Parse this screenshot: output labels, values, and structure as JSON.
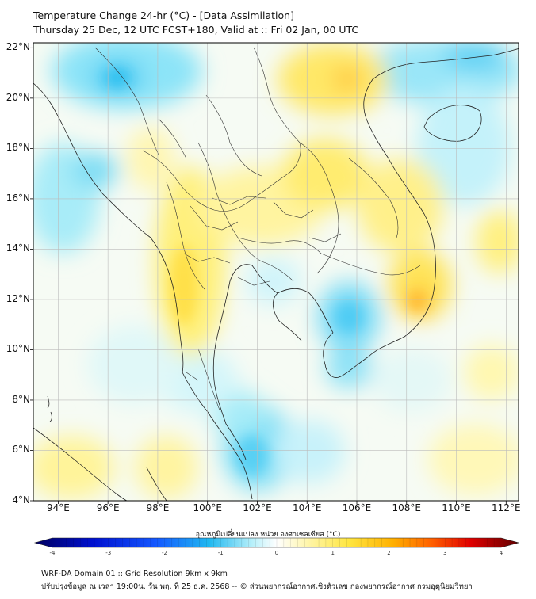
{
  "title_line1": "Temperature Change 24-hr (°C) - [Data Assimilation]",
  "title_line2": "Thursday 25 Dec, 12 UTC FCST+180, Valid at :: Fri 02 Jan, 00 UTC",
  "map": {
    "lon_range": [
      93,
      112.5
    ],
    "lat_range": [
      4,
      22.2
    ],
    "lat_ticks": [
      {
        "v": 22,
        "label": "22°N"
      },
      {
        "v": 20,
        "label": "20°N"
      },
      {
        "v": 18,
        "label": "18°N"
      },
      {
        "v": 16,
        "label": "16°N"
      },
      {
        "v": 14,
        "label": "14°N"
      },
      {
        "v": 12,
        "label": "12°N"
      },
      {
        "v": 10,
        "label": "10°N"
      },
      {
        "v": 8,
        "label": "8°N"
      },
      {
        "v": 6,
        "label": "6°N"
      },
      {
        "v": 4,
        "label": "4°N"
      }
    ],
    "lon_ticks": [
      {
        "v": 94,
        "label": "94°E"
      },
      {
        "v": 96,
        "label": "96°E"
      },
      {
        "v": 98,
        "label": "98°E"
      },
      {
        "v": 100,
        "label": "100°E"
      },
      {
        "v": 102,
        "label": "102°E"
      },
      {
        "v": 104,
        "label": "104°E"
      },
      {
        "v": 106,
        "label": "106°E"
      },
      {
        "v": 108,
        "label": "108°E"
      },
      {
        "v": 110,
        "label": "110°E"
      },
      {
        "v": 112,
        "label": "112°E"
      }
    ]
  },
  "colorbar": {
    "title": "อุณหภูมิเปลี่ยนแปลง หน่วย องศาเซลเซียส (°C)",
    "min": -4,
    "max": 4,
    "ticks": [
      {
        "v": -4,
        "label": "-4"
      },
      {
        "v": -3,
        "label": "-3"
      },
      {
        "v": -2,
        "label": "-2"
      },
      {
        "v": -1,
        "label": "-1"
      },
      {
        "v": 0,
        "label": "0"
      },
      {
        "v": 1,
        "label": "1"
      },
      {
        "v": 2,
        "label": "2"
      },
      {
        "v": 3,
        "label": "3"
      },
      {
        "v": 4,
        "label": "4"
      }
    ],
    "colors": [
      "#000080",
      "#0000c8",
      "#1450ff",
      "#28a0f0",
      "#40d8f0",
      "#c8f4ff",
      "#ffffff",
      "#fff8c0",
      "#ffee50",
      "#ffc000",
      "#ff8000",
      "#ff2000",
      "#c00000",
      "#700000"
    ]
  },
  "footer_line1": "WRF-DA Domain 01 :: Grid Resolution 9km x 9km",
  "footer_line2": "ปรับปรุงข้อมูล ณ เวลา 19:00น. วัน พฤ. ที่ 25 ธ.ค. 2568 -- © ส่วนพยากรณ์อากาศเชิงตัวเลข กองพยากรณ์อากาศ กรมอุตุนิยมวิทยา"
}
